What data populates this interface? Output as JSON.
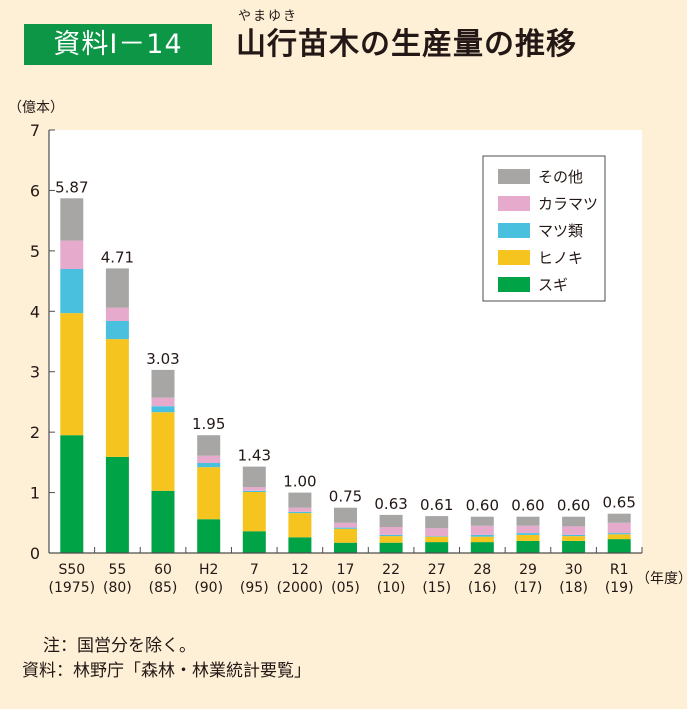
{
  "header": {
    "badge": "資料Ⅰ－14",
    "title": "山行苗木の生産量の推移",
    "ruby": "やまゆき"
  },
  "notes": {
    "note": "注：国営分を除く。",
    "source": "資料：林野庁「森林・林業統計要覧」"
  },
  "chart_data": {
    "type": "bar",
    "stacked": true,
    "title": "山行苗木の生産量の推移",
    "ylabel": "（億本）",
    "xlabel": "（年度）",
    "ylim": [
      0,
      7
    ],
    "yticks": [
      0,
      1,
      2,
      3,
      4,
      5,
      6,
      7
    ],
    "grid": false,
    "legend_position": "top-right",
    "categories": [
      "S50",
      "55",
      "60",
      "H2",
      "7",
      "12",
      "17",
      "22",
      "27",
      "28",
      "29",
      "30",
      "R1"
    ],
    "category_sublabels": [
      "(1975)",
      "(80)",
      "(85)",
      "(90)",
      "(95)",
      "(2000)",
      "(05)",
      "(10)",
      "(15)",
      "(16)",
      "(17)",
      "(18)",
      "(19)"
    ],
    "totals": [
      5.87,
      4.71,
      3.03,
      1.95,
      1.43,
      1.0,
      0.75,
      0.63,
      0.61,
      0.6,
      0.6,
      0.6,
      0.65
    ],
    "total_labels": [
      "5.87",
      "4.71",
      "3.03",
      "1.95",
      "1.43",
      "1.00",
      "0.75",
      "0.63",
      "0.61",
      "0.60",
      "0.60",
      "0.60",
      "0.65"
    ],
    "series": [
      {
        "name": "スギ",
        "color": "#00a345",
        "values": [
          1.95,
          1.59,
          1.03,
          0.56,
          0.36,
          0.26,
          0.17,
          0.17,
          0.18,
          0.18,
          0.2,
          0.2,
          0.23
        ]
      },
      {
        "name": "ヒノキ",
        "color": "#f6c41f",
        "values": [
          2.02,
          1.95,
          1.3,
          0.86,
          0.65,
          0.4,
          0.23,
          0.11,
          0.09,
          0.09,
          0.1,
          0.08,
          0.08
        ]
      },
      {
        "name": "マツ類",
        "color": "#4ac0df",
        "values": [
          0.73,
          0.3,
          0.1,
          0.07,
          0.02,
          0.02,
          0.02,
          0.02,
          0.01,
          0.03,
          0.03,
          0.02,
          0.02
        ]
      },
      {
        "name": "カラマツ",
        "color": "#e6abcc",
        "values": [
          0.47,
          0.22,
          0.14,
          0.12,
          0.06,
          0.07,
          0.08,
          0.13,
          0.13,
          0.15,
          0.12,
          0.14,
          0.17
        ]
      },
      {
        "name": "その他",
        "color": "#a7a6a5",
        "values": [
          0.7,
          0.65,
          0.46,
          0.34,
          0.34,
          0.25,
          0.25,
          0.2,
          0.2,
          0.15,
          0.15,
          0.16,
          0.15
        ]
      }
    ],
    "legend_order": [
      "その他",
      "カラマツ",
      "マツ類",
      "ヒノキ",
      "スギ"
    ]
  }
}
